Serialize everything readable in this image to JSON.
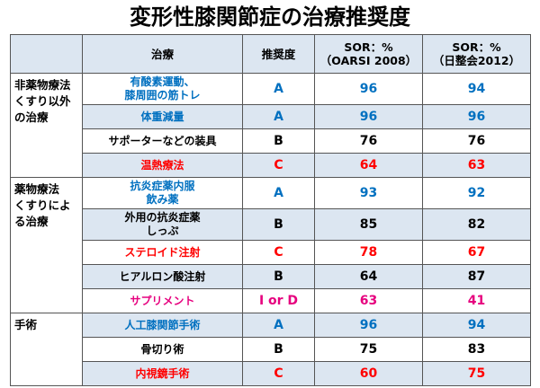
{
  "title": "変形性膝関節症の治療推奨度",
  "headers": {
    "category": "",
    "treatment": "治療",
    "grade": "推奨度",
    "sor1": "SOR：%",
    "sor1_sub": "（OARSI 2008）",
    "sor2": "SOR：%",
    "sor2_sub": "（日整会2012）"
  },
  "categories": {
    "nonpharm": "非薬物療法\nくすり以外の治療",
    "pharm": "薬物療法\nくすりによる治療",
    "surgery": "手術"
  },
  "colors": {
    "blue": "#0070c0",
    "black": "#000000",
    "red": "#ff0000",
    "magenta": "#e6007e",
    "header_bg": "#dce6f1"
  },
  "rows": [
    {
      "treatment": "有酸素運動、膝周囲の筋トレ",
      "grade": "A",
      "sor1": "96",
      "sor2": "94",
      "color": "blue"
    },
    {
      "treatment": "体重減量",
      "grade": "A",
      "sor1": "96",
      "sor2": "96",
      "color": "blue"
    },
    {
      "treatment": "サポーターなどの装具",
      "grade": "B",
      "sor1": "76",
      "sor2": "76",
      "color": "black"
    },
    {
      "treatment": "温熱療法",
      "grade": "C",
      "sor1": "64",
      "sor2": "63",
      "color": "red"
    },
    {
      "treatment": "抗炎症薬内服 飲み薬",
      "grade": "A",
      "sor1": "93",
      "sor2": "92",
      "color": "blue"
    },
    {
      "treatment": "外用の抗炎症薬 しっぷ",
      "grade": "B",
      "sor1": "85",
      "sor2": "82",
      "color": "black"
    },
    {
      "treatment": "ステロイド注射",
      "grade": "C",
      "sor1": "78",
      "sor2": "67",
      "color": "red"
    },
    {
      "treatment": "ヒアルロン酸注射",
      "grade": "B",
      "sor1": "64",
      "sor2": "87",
      "color": "black"
    },
    {
      "treatment": "サプリメント",
      "grade": "I or D",
      "sor1": "63",
      "sor2": "41",
      "color": "magenta"
    },
    {
      "treatment": "人工膝関節手術",
      "grade": "A",
      "sor1": "96",
      "sor2": "94",
      "color": "blue"
    },
    {
      "treatment": "骨切り術",
      "grade": "B",
      "sor1": "75",
      "sor2": "83",
      "color": "black"
    },
    {
      "treatment": "内視鏡手術",
      "grade": "C",
      "sor1": "60",
      "sor2": "75",
      "color": "red"
    }
  ]
}
